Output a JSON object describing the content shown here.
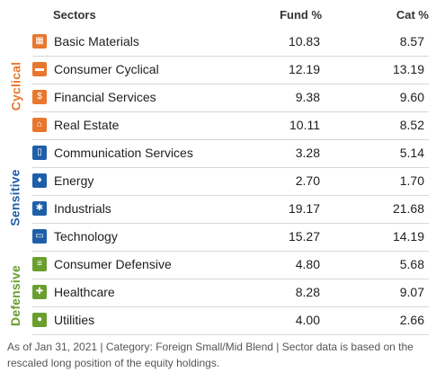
{
  "header": {
    "sectors": "Sectors",
    "fund": "Fund  %",
    "cat": "Cat  %"
  },
  "groups": [
    {
      "label": "Cyclical",
      "color": "#e8772e"
    },
    {
      "label": "Sensitive",
      "color": "#1f5fa8"
    },
    {
      "label": "Defensive",
      "color": "#6a9e2f"
    }
  ],
  "rows": [
    {
      "name": "Basic Materials",
      "fund": "10.83",
      "cat": "8.57",
      "icon": "factory-icon",
      "color": "#e8772e"
    },
    {
      "name": "Consumer Cyclical",
      "fund": "12.19",
      "cat": "13.19",
      "icon": "car-icon",
      "color": "#e8772e"
    },
    {
      "name": "Financial Services",
      "fund": "9.38",
      "cat": "9.60",
      "icon": "money-icon",
      "color": "#e8772e"
    },
    {
      "name": "Real Estate",
      "fund": "10.11",
      "cat": "8.52",
      "icon": "house-icon",
      "color": "#e8772e"
    },
    {
      "name": "Communication Services",
      "fund": "3.28",
      "cat": "5.14",
      "icon": "phone-icon",
      "color": "#1f5fa8"
    },
    {
      "name": "Energy",
      "fund": "2.70",
      "cat": "1.70",
      "icon": "flame-icon",
      "color": "#1f5fa8"
    },
    {
      "name": "Industrials",
      "fund": "19.17",
      "cat": "21.68",
      "icon": "gear-icon",
      "color": "#1f5fa8"
    },
    {
      "name": "Technology",
      "fund": "15.27",
      "cat": "14.19",
      "icon": "computer-icon",
      "color": "#1f5fa8"
    },
    {
      "name": "Consumer Defensive",
      "fund": "4.80",
      "cat": "5.68",
      "icon": "cart-icon",
      "color": "#6a9e2f"
    },
    {
      "name": "Healthcare",
      "fund": "8.28",
      "cat": "9.07",
      "icon": "cross-icon",
      "color": "#6a9e2f"
    },
    {
      "name": "Utilities",
      "fund": "4.00",
      "cat": "2.66",
      "icon": "bulb-icon",
      "color": "#6a9e2f"
    }
  ],
  "footer": {
    "line1": "As of Jan 31, 2021 | Category: Foreign Small/Mid Blend | Sector data is based on the",
    "line2": "rescaled long position of the equity holdings."
  }
}
